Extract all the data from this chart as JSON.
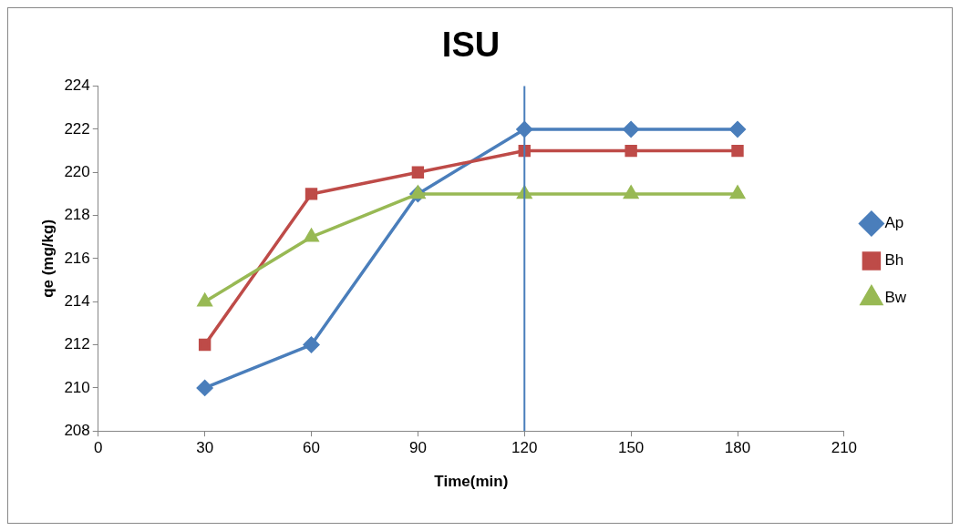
{
  "chart_data": {
    "type": "line",
    "title": "ISU",
    "xlabel": "Time(min)",
    "ylabel": "qe (mg/kg)",
    "x": [
      30,
      60,
      90,
      120,
      150,
      180
    ],
    "series": [
      {
        "name": "Ap",
        "color": "#4a7ebb",
        "values": [
          210,
          212,
          219,
          222,
          222,
          222
        ],
        "marker": "diamond"
      },
      {
        "name": "Bh",
        "color": "#be4b48",
        "values": [
          212,
          219,
          220,
          221,
          221,
          221
        ],
        "marker": "square"
      },
      {
        "name": "Bw",
        "color": "#98b954",
        "values": [
          214,
          217,
          219,
          219,
          219,
          219
        ],
        "marker": "triangle"
      }
    ],
    "xlim": [
      0,
      210
    ],
    "xticks": [
      0,
      30,
      60,
      90,
      120,
      150,
      180,
      210
    ],
    "ylim": [
      208,
      224
    ],
    "yticks": [
      208,
      210,
      212,
      214,
      216,
      218,
      220,
      222,
      224
    ],
    "ref_lines": [
      {
        "axis": "x",
        "value": 120,
        "color": "#4a7ebb"
      }
    ],
    "grid": false,
    "legend": "right",
    "line_style": "solid"
  }
}
